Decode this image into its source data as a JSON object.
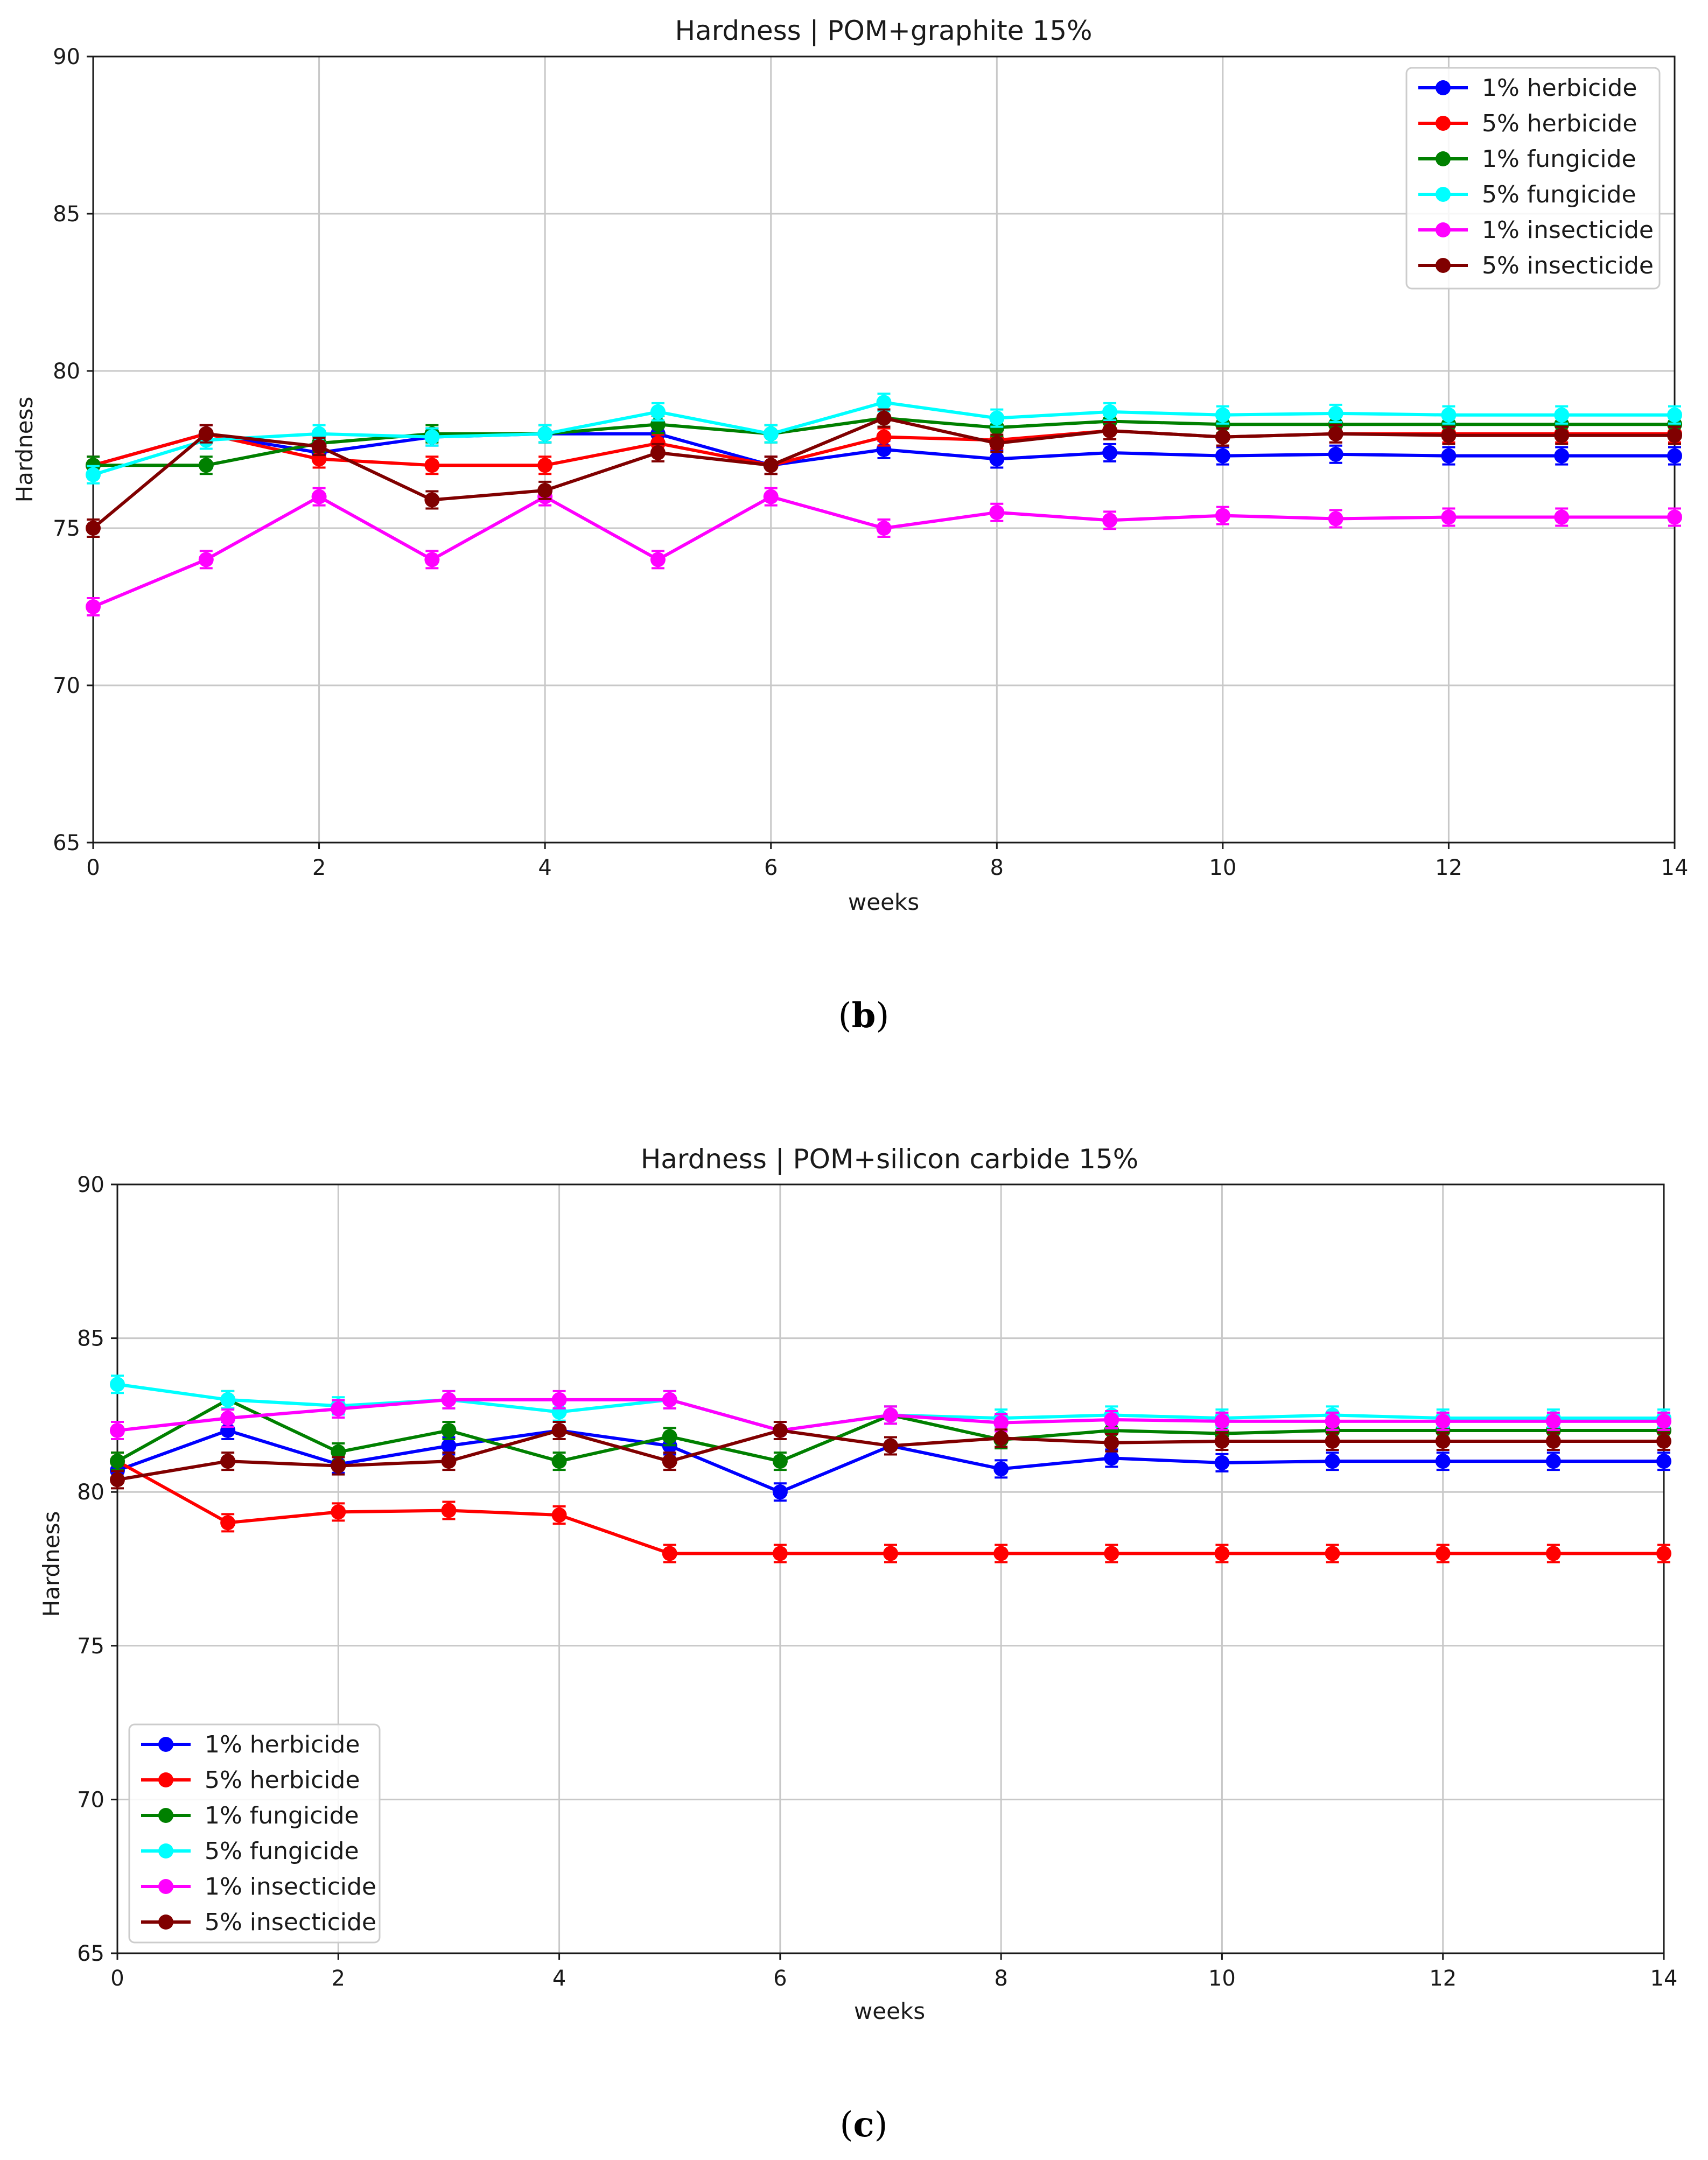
{
  "chart_data": [
    {
      "type": "line",
      "panel": "(b)",
      "panel_letter": "b",
      "title": "Hardness | POM+graphite 15%",
      "xlabel": "weeks",
      "ylabel": "Hardness",
      "xlim": [
        0,
        14
      ],
      "ylim": [
        65,
        90
      ],
      "xticks": [
        0,
        2,
        4,
        6,
        8,
        10,
        12,
        14
      ],
      "yticks": [
        65,
        70,
        75,
        80,
        85,
        90
      ],
      "grid": true,
      "legend_position": "top-right",
      "x": [
        0,
        1,
        2,
        3,
        4,
        5,
        6,
        7,
        8,
        9,
        10,
        11,
        12,
        13,
        14
      ],
      "series": [
        {
          "name": "1% herbicide",
          "color": "#0000ff",
          "values": [
            77.0,
            78.0,
            77.4,
            77.9,
            78.0,
            78.0,
            77.0,
            77.5,
            77.2,
            77.4,
            77.3,
            77.35,
            77.3,
            77.3,
            77.3
          ]
        },
        {
          "name": "5% herbicide",
          "color": "#ff0000",
          "values": [
            77.0,
            78.0,
            77.2,
            77.0,
            77.0,
            77.7,
            77.0,
            77.9,
            77.8,
            78.1,
            77.9,
            78.0,
            78.0,
            78.0,
            78.0
          ]
        },
        {
          "name": "1% fungicide",
          "color": "#008000",
          "values": [
            77.0,
            77.0,
            77.7,
            78.0,
            78.0,
            78.3,
            78.0,
            78.5,
            78.2,
            78.4,
            78.3,
            78.3,
            78.3,
            78.3,
            78.3
          ]
        },
        {
          "name": "5% fungicide",
          "color": "#00ffff",
          "values": [
            76.7,
            77.8,
            78.0,
            77.9,
            78.0,
            78.7,
            78.0,
            79.0,
            78.5,
            78.7,
            78.6,
            78.65,
            78.6,
            78.6,
            78.6
          ]
        },
        {
          "name": "1% insecticide",
          "color": "#ff00ff",
          "values": [
            72.5,
            74.0,
            76.0,
            74.0,
            76.0,
            74.0,
            76.0,
            75.0,
            75.5,
            75.25,
            75.4,
            75.3,
            75.35,
            75.35,
            75.35
          ]
        },
        {
          "name": "5% insecticide",
          "color": "#800000",
          "values": [
            75.0,
            78.0,
            77.6,
            75.9,
            76.2,
            77.4,
            77.0,
            78.5,
            77.7,
            78.1,
            77.9,
            78.0,
            77.95,
            77.95,
            77.95
          ]
        }
      ]
    },
    {
      "type": "line",
      "panel": "(c)",
      "panel_letter": "c",
      "title": "Hardness | POM+silicon carbide 15%",
      "xlabel": "weeks",
      "ylabel": "Hardness",
      "xlim": [
        0,
        14
      ],
      "ylim": [
        65,
        90
      ],
      "xticks": [
        0,
        2,
        4,
        6,
        8,
        10,
        12,
        14
      ],
      "yticks": [
        65,
        70,
        75,
        80,
        85,
        90
      ],
      "grid": true,
      "legend_position": "lower-left",
      "x": [
        0,
        1,
        2,
        3,
        4,
        5,
        6,
        7,
        8,
        9,
        10,
        11,
        12,
        13,
        14
      ],
      "series": [
        {
          "name": "1% herbicide",
          "color": "#0000ff",
          "values": [
            80.7,
            82.0,
            80.9,
            81.5,
            82.0,
            81.5,
            80.0,
            81.5,
            80.75,
            81.1,
            80.95,
            81.0,
            81.0,
            81.0,
            81.0
          ]
        },
        {
          "name": "5% herbicide",
          "color": "#ff0000",
          "values": [
            81.0,
            79.0,
            79.35,
            79.4,
            79.25,
            78.0,
            78.0,
            78.0,
            78.0,
            78.0,
            78.0,
            78.0,
            78.0,
            78.0,
            78.0
          ]
        },
        {
          "name": "1% fungicide",
          "color": "#008000",
          "values": [
            81.0,
            83.0,
            81.3,
            82.0,
            81.0,
            81.8,
            81.0,
            82.5,
            81.7,
            82.0,
            81.9,
            82.0,
            82.0,
            82.0,
            82.0
          ]
        },
        {
          "name": "5% fungicide",
          "color": "#00ffff",
          "values": [
            83.5,
            83.0,
            82.8,
            83.0,
            82.6,
            83.0,
            82.0,
            82.5,
            82.4,
            82.5,
            82.4,
            82.5,
            82.4,
            82.4,
            82.4
          ]
        },
        {
          "name": "1% insecticide",
          "color": "#ff00ff",
          "values": [
            82.0,
            82.4,
            82.7,
            83.0,
            83.0,
            83.0,
            82.0,
            82.5,
            82.25,
            82.35,
            82.3,
            82.3,
            82.3,
            82.3,
            82.3
          ]
        },
        {
          "name": "5% insecticide",
          "color": "#800000",
          "values": [
            80.4,
            81.0,
            80.85,
            81.0,
            82.0,
            81.0,
            82.0,
            81.5,
            81.75,
            81.6,
            81.65,
            81.65,
            81.65,
            81.65,
            81.65
          ]
        }
      ]
    }
  ]
}
